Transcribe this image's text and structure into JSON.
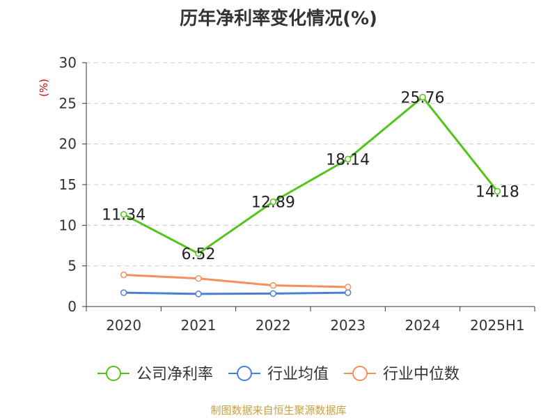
{
  "chart_data": {
    "type": "line",
    "title": "历年净利率变化情况(%)",
    "ylabel": "(%)",
    "xlabel": "",
    "categories": [
      "2020",
      "2021",
      "2022",
      "2023",
      "2024",
      "2025H1"
    ],
    "ylim": [
      0,
      30
    ],
    "yticks": [
      0,
      5,
      10,
      15,
      20,
      25,
      30
    ],
    "grid": true,
    "legend_position": "bottom",
    "series": [
      {
        "name": "公司净利率",
        "color": "#52c41a",
        "show_labels": true,
        "values": [
          11.34,
          6.52,
          12.89,
          18.14,
          25.76,
          14.18
        ]
      },
      {
        "name": "行业均值",
        "color": "#4a7fd6",
        "show_labels": false,
        "values": [
          1.7,
          1.55,
          1.6,
          1.7,
          null,
          null
        ]
      },
      {
        "name": "行业中位数",
        "color": "#f5905a",
        "show_labels": false,
        "values": [
          3.9,
          3.45,
          2.6,
          2.4,
          null,
          null
        ]
      }
    ]
  },
  "colors": {
    "ylabel": "#dd0000",
    "source": "#c8a040",
    "axis": "#333333",
    "grid": "#cccccc"
  },
  "source_note": "制图数据来自恒生聚源数据库"
}
